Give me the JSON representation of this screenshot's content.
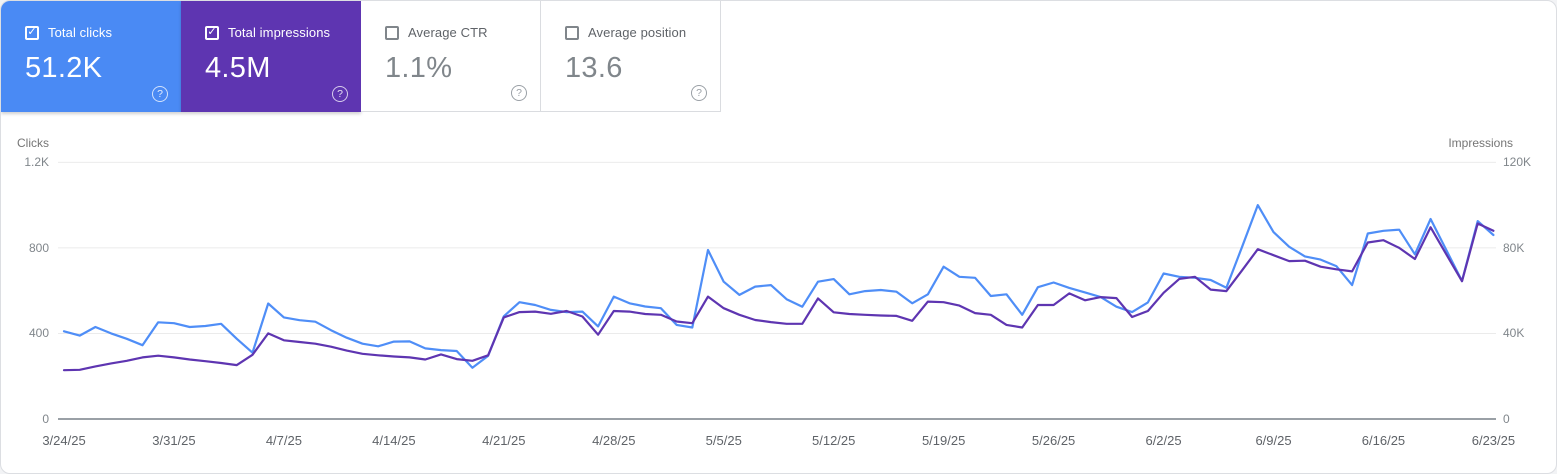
{
  "colors": {
    "clicks_accent": "#4a8af4",
    "impressions_accent": "#5e35b1",
    "clicks_line": "#4f8ef7",
    "impressions_line": "#5e35b1",
    "grid": "#ebebeb",
    "baseline": "#9aa0a6"
  },
  "cards": [
    {
      "label": "Total clicks",
      "value": "51.2K",
      "selected": true,
      "help_icon": "?"
    },
    {
      "label": "Total impressions",
      "value": "4.5M",
      "selected": true,
      "help_icon": "?"
    },
    {
      "label": "Average CTR",
      "value": "1.1%",
      "selected": false,
      "help_icon": "?"
    },
    {
      "label": "Average position",
      "value": "13.6",
      "selected": false,
      "help_icon": "?"
    }
  ],
  "chart_data": {
    "type": "line",
    "x_labels": [
      "3/24/25",
      "3/31/25",
      "4/7/25",
      "4/14/25",
      "4/21/25",
      "4/28/25",
      "5/5/25",
      "5/12/25",
      "5/19/25",
      "5/26/25",
      "6/2/25",
      "6/9/25",
      "6/16/25",
      "6/23/25"
    ],
    "points_per_label_interval": 7,
    "date_range": {
      "start": "3/24/25",
      "end": "6/23/25"
    },
    "y_left": {
      "title": "Clicks",
      "max": 1200,
      "ticks": [
        {
          "v": 1200,
          "label": "1.2K"
        },
        {
          "v": 800,
          "label": "800"
        },
        {
          "v": 400,
          "label": "400"
        },
        {
          "v": 0,
          "label": "0"
        }
      ]
    },
    "y_right": {
      "title": "Impressions",
      "max": 120000,
      "ticks": [
        {
          "v": 120000,
          "label": "120K"
        },
        {
          "v": 80000,
          "label": "80K"
        },
        {
          "v": 40000,
          "label": "40K"
        },
        {
          "v": 0,
          "label": "0"
        }
      ]
    },
    "series": [
      {
        "name": "Total clicks",
        "axis": "left",
        "color": "#4f8ef7",
        "values": [
          410,
          390,
          430,
          400,
          375,
          345,
          452,
          448,
          430,
          435,
          445,
          375,
          310,
          540,
          475,
          462,
          455,
          415,
          380,
          352,
          340,
          362,
          363,
          330,
          322,
          318,
          240,
          295,
          480,
          546,
          533,
          510,
          500,
          502,
          433,
          572,
          541,
          526,
          518,
          440,
          428,
          790,
          642,
          580,
          619,
          626,
          560,
          525,
          642,
          654,
          583,
          598,
          603,
          595,
          541,
          583,
          712,
          665,
          660,
          575,
          583,
          487,
          616,
          638,
          613,
          592,
          570,
          525,
          500,
          545,
          680,
          665,
          660,
          650,
          614,
          805,
          1000,
          874,
          805,
          760,
          745,
          715,
          626,
          867,
          880,
          885,
          770,
          935,
          790,
          645,
          925,
          860
        ]
      },
      {
        "name": "Total impressions",
        "axis": "right",
        "color": "#5e35b1",
        "values": [
          22800,
          23000,
          24600,
          26000,
          27200,
          28800,
          29600,
          28800,
          27800,
          27000,
          26200,
          25200,
          30000,
          40000,
          36800,
          36000,
          35200,
          33800,
          32000,
          30500,
          29800,
          29200,
          28800,
          27800,
          30200,
          28000,
          27200,
          29800,
          47500,
          50000,
          50200,
          49200,
          50500,
          47900,
          39400,
          50500,
          50200,
          49100,
          48700,
          45600,
          44800,
          57200,
          51800,
          48700,
          46300,
          45300,
          44500,
          44500,
          56400,
          49900,
          49100,
          48700,
          48400,
          48200,
          45900,
          54900,
          54600,
          53000,
          49500,
          48700,
          44000,
          42800,
          53300,
          53300,
          58700,
          55500,
          57000,
          56500,
          47700,
          50500,
          59000,
          65500,
          66500,
          60500,
          59800,
          69500,
          79400,
          76600,
          73800,
          74000,
          71200,
          70000,
          69000,
          82500,
          83600,
          80000,
          74800,
          89600,
          77000,
          64400,
          91400,
          88000
        ]
      }
    ]
  }
}
